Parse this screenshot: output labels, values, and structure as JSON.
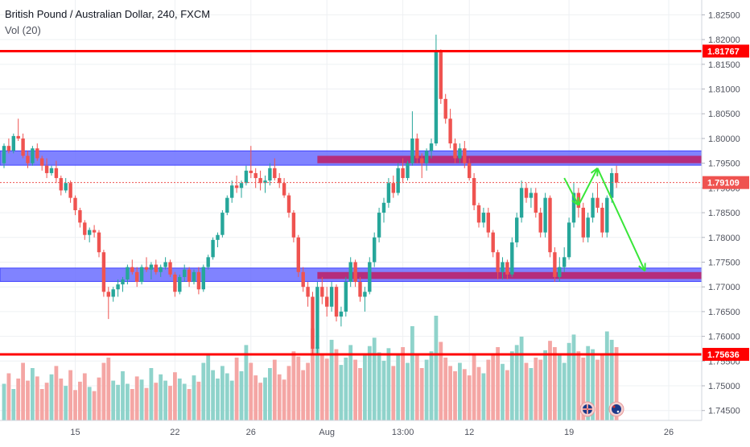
{
  "header": {
    "title": "British Pound / Australian Dollar, 240, FXCM",
    "indicator": "Vol (20)"
  },
  "colors": {
    "up": "#26a69a",
    "down": "#ef5350",
    "vol_up": "#8fd3cb",
    "vol_down": "#f4a6a4",
    "resistance": "#ff0000",
    "zone_blue": "#6a6dff",
    "zone_magenta": "#c2185b",
    "arrow": "#39e639",
    "price_line": "#ef5350"
  },
  "chart_data": {
    "type": "candlestick",
    "title": "British Pound / Australian Dollar, 240, FXCM",
    "timeframe": "240",
    "ylim": [
      1.743,
      1.828
    ],
    "y_ticks": [
      "1.82500",
      "1.82000",
      "1.81500",
      "1.81000",
      "1.80500",
      "1.80000",
      "1.79500",
      "1.79000",
      "1.78500",
      "1.78000",
      "1.77500",
      "1.77000",
      "1.76500",
      "1.76000",
      "1.75500",
      "1.75000",
      "1.74500"
    ],
    "x_ticks": [
      {
        "label": "15",
        "bar": 15
      },
      {
        "label": "22",
        "bar": 36
      },
      {
        "label": "26",
        "bar": 52
      },
      {
        "label": "Aug",
        "bar": 68
      },
      {
        "label": "13:00",
        "bar": 84
      },
      {
        "label": "12",
        "bar": 98
      },
      {
        "label": "19",
        "bar": 119
      },
      {
        "label": "26",
        "bar": 140
      }
    ],
    "levels": [
      {
        "label": "1.81767",
        "value": 1.81767
      },
      {
        "label": "1.75636",
        "value": 1.75636
      }
    ],
    "current_price": {
      "label": "1.79109",
      "value": 1.79109
    },
    "zones": [
      {
        "name": "upper-blue-zone",
        "color": "blue",
        "start_bar": 0,
        "end_bar": 150,
        "low": 1.7946,
        "high": 1.7975
      },
      {
        "name": "upper-magenta-zone",
        "color": "magenta",
        "start_bar": 66,
        "end_bar": 150,
        "low": 1.795,
        "high": 1.7965
      },
      {
        "name": "lower-blue-zone",
        "color": "blue",
        "start_bar": 0,
        "end_bar": 150,
        "low": 1.7711,
        "high": 1.7738
      },
      {
        "name": "lower-magenta-zone",
        "color": "magenta",
        "start_bar": 66,
        "end_bar": 150,
        "low": 1.7716,
        "high": 1.773
      }
    ],
    "projection": [
      {
        "bar": 118,
        "price": 1.792
      },
      {
        "bar": 121,
        "price": 1.7865
      },
      {
        "bar": 125,
        "price": 1.794
      },
      {
        "bar": 135,
        "price": 1.7732
      }
    ],
    "candles": [
      [
        1.795,
        1.799,
        1.794,
        1.7985
      ],
      [
        1.7985,
        1.8,
        1.797,
        1.7975
      ],
      [
        1.7975,
        1.801,
        1.797,
        1.8005
      ],
      [
        1.8005,
        1.804,
        1.7995,
        1.8
      ],
      [
        1.8,
        1.801,
        1.796,
        1.7965
      ],
      [
        1.7965,
        1.7975,
        1.794,
        1.795
      ],
      [
        1.795,
        1.7985,
        1.7945,
        1.798
      ],
      [
        1.798,
        1.799,
        1.7955,
        1.796
      ],
      [
        1.796,
        1.7965,
        1.7935,
        1.7945
      ],
      [
        1.7945,
        1.796,
        1.792,
        1.793
      ],
      [
        1.793,
        1.7945,
        1.7925,
        1.794
      ],
      [
        1.794,
        1.7955,
        1.791,
        1.792
      ],
      [
        1.792,
        1.7925,
        1.7885,
        1.7895
      ],
      [
        1.7895,
        1.792,
        1.789,
        1.791
      ],
      [
        1.791,
        1.7915,
        1.787,
        1.788
      ],
      [
        1.788,
        1.7885,
        1.7845,
        1.7855
      ],
      [
        1.7855,
        1.786,
        1.782,
        1.783
      ],
      [
        1.783,
        1.7835,
        1.7795,
        1.7805
      ],
      [
        1.7805,
        1.782,
        1.779,
        1.7815
      ],
      [
        1.7815,
        1.7825,
        1.78,
        1.781
      ],
      [
        1.781,
        1.7815,
        1.776,
        1.777
      ],
      [
        1.777,
        1.7775,
        1.768,
        1.769
      ],
      [
        1.769,
        1.77,
        1.7635,
        1.768
      ],
      [
        1.768,
        1.77,
        1.767,
        1.7695
      ],
      [
        1.7695,
        1.7715,
        1.768,
        1.7705
      ],
      [
        1.7705,
        1.772,
        1.769,
        1.7715
      ],
      [
        1.7715,
        1.7745,
        1.7705,
        1.774
      ],
      [
        1.774,
        1.7755,
        1.7725,
        1.773
      ],
      [
        1.773,
        1.774,
        1.77,
        1.771
      ],
      [
        1.771,
        1.7745,
        1.7705,
        1.774
      ],
      [
        1.774,
        1.776,
        1.773,
        1.7735
      ],
      [
        1.7735,
        1.775,
        1.7715,
        1.7745
      ],
      [
        1.7745,
        1.7755,
        1.7725,
        1.773
      ],
      [
        1.773,
        1.7745,
        1.772,
        1.774
      ],
      [
        1.774,
        1.776,
        1.7735,
        1.775
      ],
      [
        1.775,
        1.7755,
        1.772,
        1.7725
      ],
      [
        1.7725,
        1.773,
        1.768,
        1.769
      ],
      [
        1.769,
        1.7725,
        1.7685,
        1.772
      ],
      [
        1.772,
        1.7745,
        1.771,
        1.7735
      ],
      [
        1.7735,
        1.774,
        1.77,
        1.771
      ],
      [
        1.771,
        1.7735,
        1.7705,
        1.773
      ],
      [
        1.773,
        1.774,
        1.7685,
        1.7695
      ],
      [
        1.7695,
        1.7745,
        1.769,
        1.774
      ],
      [
        1.774,
        1.7765,
        1.7735,
        1.776
      ],
      [
        1.776,
        1.78,
        1.7755,
        1.7795
      ],
      [
        1.7795,
        1.781,
        1.778,
        1.7805
      ],
      [
        1.7805,
        1.7855,
        1.78,
        1.785
      ],
      [
        1.785,
        1.7885,
        1.7845,
        1.788
      ],
      [
        1.788,
        1.7915,
        1.787,
        1.7905
      ],
      [
        1.7905,
        1.7925,
        1.789,
        1.79
      ],
      [
        1.79,
        1.7915,
        1.788,
        1.791
      ],
      [
        1.791,
        1.7945,
        1.7905,
        1.7935
      ],
      [
        1.7935,
        1.7985,
        1.792,
        1.793
      ],
      [
        1.793,
        1.794,
        1.79,
        1.792
      ],
      [
        1.792,
        1.7935,
        1.7895,
        1.791
      ],
      [
        1.791,
        1.7925,
        1.789,
        1.7915
      ],
      [
        1.7915,
        1.795,
        1.7905,
        1.794
      ],
      [
        1.794,
        1.796,
        1.7915,
        1.792
      ],
      [
        1.792,
        1.793,
        1.79,
        1.791
      ],
      [
        1.791,
        1.792,
        1.788,
        1.7885
      ],
      [
        1.7885,
        1.789,
        1.784,
        1.785
      ],
      [
        1.785,
        1.7855,
        1.779,
        1.78
      ],
      [
        1.78,
        1.7805,
        1.772,
        1.773
      ],
      [
        1.773,
        1.774,
        1.769,
        1.77
      ],
      [
        1.77,
        1.771,
        1.766,
        1.768
      ],
      [
        1.768,
        1.769,
        1.7565,
        1.7575
      ],
      [
        1.7575,
        1.771,
        1.7565,
        1.77
      ],
      [
        1.77,
        1.772,
        1.7665,
        1.768
      ],
      [
        1.768,
        1.77,
        1.764,
        1.766
      ],
      [
        1.766,
        1.771,
        1.765,
        1.77
      ],
      [
        1.77,
        1.7705,
        1.763,
        1.764
      ],
      [
        1.764,
        1.766,
        1.762,
        1.765
      ],
      [
        1.765,
        1.772,
        1.764,
        1.771
      ],
      [
        1.771,
        1.776,
        1.77,
        1.775
      ],
      [
        1.775,
        1.7755,
        1.77,
        1.771
      ],
      [
        1.771,
        1.772,
        1.767,
        1.768
      ],
      [
        1.768,
        1.77,
        1.765,
        1.769
      ],
      [
        1.769,
        1.776,
        1.7685,
        1.775
      ],
      [
        1.775,
        1.781,
        1.774,
        1.78
      ],
      [
        1.78,
        1.786,
        1.779,
        1.785
      ],
      [
        1.785,
        1.788,
        1.783,
        1.787
      ],
      [
        1.787,
        1.792,
        1.786,
        1.791
      ],
      [
        1.791,
        1.7925,
        1.788,
        1.789
      ],
      [
        1.789,
        1.795,
        1.7885,
        1.794
      ],
      [
        1.794,
        1.796,
        1.791,
        1.792
      ],
      [
        1.792,
        1.7955,
        1.7915,
        1.795
      ],
      [
        1.795,
        1.8055,
        1.7945,
        1.8
      ],
      [
        1.8,
        1.801,
        1.795,
        1.796
      ],
      [
        1.796,
        1.797,
        1.792,
        1.795
      ],
      [
        1.795,
        1.798,
        1.7935,
        1.7975
      ],
      [
        1.7975,
        1.8,
        1.796,
        1.799
      ],
      [
        1.799,
        1.821,
        1.7985,
        1.8175
      ],
      [
        1.8175,
        1.818,
        1.807,
        1.808
      ],
      [
        1.808,
        1.809,
        1.803,
        1.804
      ],
      [
        1.804,
        1.806,
        1.798,
        1.799
      ],
      [
        1.799,
        1.8,
        1.795,
        1.796
      ],
      [
        1.796,
        1.799,
        1.795,
        1.798
      ],
      [
        1.798,
        1.7995,
        1.794,
        1.795
      ],
      [
        1.795,
        1.796,
        1.7915,
        1.792
      ],
      [
        1.792,
        1.793,
        1.7855,
        1.7865
      ],
      [
        1.7865,
        1.787,
        1.782,
        1.783
      ],
      [
        1.783,
        1.786,
        1.782,
        1.785
      ],
      [
        1.785,
        1.786,
        1.78,
        1.781
      ],
      [
        1.781,
        1.7815,
        1.776,
        1.777
      ],
      [
        1.777,
        1.7775,
        1.7715,
        1.773
      ],
      [
        1.773,
        1.776,
        1.7715,
        1.775
      ],
      [
        1.775,
        1.7755,
        1.7715,
        1.7725
      ],
      [
        1.7725,
        1.78,
        1.772,
        1.779
      ],
      [
        1.779,
        1.785,
        1.778,
        1.784
      ],
      [
        1.784,
        1.7915,
        1.783,
        1.79
      ],
      [
        1.79,
        1.791,
        1.787,
        1.788
      ],
      [
        1.788,
        1.79,
        1.786,
        1.789
      ],
      [
        1.789,
        1.79,
        1.784,
        1.785
      ],
      [
        1.785,
        1.786,
        1.78,
        1.781
      ],
      [
        1.781,
        1.789,
        1.78,
        1.788
      ],
      [
        1.788,
        1.7885,
        1.776,
        1.777
      ],
      [
        1.777,
        1.778,
        1.771,
        1.772
      ],
      [
        1.772,
        1.776,
        1.771,
        1.774
      ],
      [
        1.774,
        1.778,
        1.773,
        1.776
      ],
      [
        1.776,
        1.784,
        1.7755,
        1.783
      ],
      [
        1.783,
        1.791,
        1.782,
        1.789
      ],
      [
        1.789,
        1.79,
        1.784,
        1.786
      ],
      [
        1.786,
        1.787,
        1.779,
        1.78
      ],
      [
        1.78,
        1.785,
        1.779,
        1.784
      ],
      [
        1.784,
        1.789,
        1.783,
        1.788
      ],
      [
        1.788,
        1.791,
        1.785,
        1.786
      ],
      [
        1.786,
        1.787,
        1.78,
        1.781
      ],
      [
        1.781,
        1.7885,
        1.78,
        1.788
      ],
      [
        1.788,
        1.794,
        1.787,
        1.793
      ],
      [
        1.793,
        1.7945,
        1.79,
        1.7911
      ]
    ],
    "volumes": [
      0.35,
      0.45,
      0.3,
      0.4,
      0.55,
      0.38,
      0.5,
      0.42,
      0.3,
      0.36,
      0.44,
      0.52,
      0.4,
      0.33,
      0.48,
      0.29,
      0.37,
      0.45,
      0.32,
      0.28,
      0.41,
      0.55,
      0.6,
      0.38,
      0.34,
      0.47,
      0.35,
      0.3,
      0.42,
      0.39,
      0.31,
      0.5,
      0.36,
      0.44,
      0.38,
      0.33,
      0.46,
      0.4,
      0.35,
      0.3,
      0.43,
      0.37,
      0.55,
      0.62,
      0.48,
      0.4,
      0.52,
      0.45,
      0.38,
      0.6,
      0.47,
      0.72,
      0.55,
      0.43,
      0.36,
      0.41,
      0.5,
      0.58,
      0.44,
      0.39,
      0.52,
      0.66,
      0.61,
      0.48,
      0.55,
      0.88,
      0.7,
      0.64,
      0.59,
      0.77,
      0.68,
      0.53,
      0.6,
      0.72,
      0.58,
      0.5,
      0.62,
      0.71,
      0.79,
      0.65,
      0.57,
      0.69,
      0.52,
      0.63,
      0.7,
      0.55,
      0.9,
      0.62,
      0.5,
      0.58,
      0.66,
      1.0,
      0.75,
      0.6,
      0.52,
      0.47,
      0.55,
      0.49,
      0.43,
      0.62,
      0.51,
      0.45,
      0.58,
      0.63,
      0.7,
      0.54,
      0.48,
      0.66,
      0.72,
      0.8,
      0.55,
      0.5,
      0.6,
      0.58,
      0.67,
      0.76,
      0.7,
      0.62,
      0.55,
      0.74,
      0.82,
      0.66,
      0.6,
      0.71,
      0.68,
      0.58,
      0.64,
      0.85,
      0.77,
      0.7
    ]
  }
}
